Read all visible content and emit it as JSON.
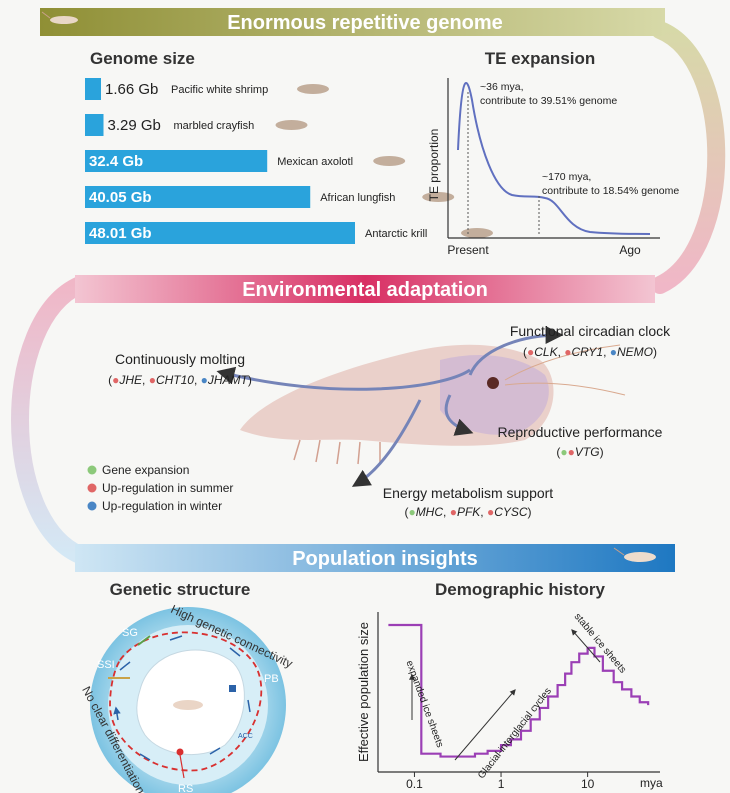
{
  "sections": {
    "genome": "Enormous repetitive genome",
    "adaptation": "Environmental adaptation",
    "population": "Population insights"
  },
  "genome_size": {
    "title": "Genome size",
    "chart_data": {
      "type": "bar",
      "categories": [
        "Pacific white shrimp",
        "marbled crayfish",
        "Mexican axolotl",
        "African lungfish",
        "Antarctic krill"
      ],
      "values": [
        1.66,
        3.29,
        32.4,
        40.05,
        48.01
      ],
      "value_labels": [
        "1.66 Gb",
        "3.29 Gb",
        "32.4 Gb",
        "40.05 Gb",
        "48.01 Gb"
      ],
      "unit": "Gb",
      "bar_color": "#2aa3dc"
    }
  },
  "te_expansion": {
    "title": "TE expansion",
    "ylabel": "TE proportion",
    "x_start": "Present",
    "x_end": "Ago",
    "peak1_line1": "~36 mya,",
    "peak1_line2": "contribute to 39.51% genome",
    "peak2_line1": "~170 mya,",
    "peak2_line2": "contribute to 18.54% genome"
  },
  "adaptation": {
    "molting_title": "Continuously molting",
    "molting_genes": [
      "JHE",
      "CHT10",
      "JHAMT"
    ],
    "clock_title": "Functional circadian clock",
    "clock_genes": [
      "CLK",
      "CRY1",
      "NEMO"
    ],
    "repro_title": "Reproductive performance",
    "repro_genes": [
      "VTG"
    ],
    "energy_title": "Energy metabolism support",
    "energy_genes": [
      "MHC",
      "PFK",
      "CYSC"
    ],
    "legend": [
      "Gene expansion",
      "Up-regulation in summer",
      "Up-regulation in winter"
    ],
    "colors": {
      "green": "#8cc97a",
      "red": "#e06666",
      "blue": "#4a86c5"
    }
  },
  "genetic_structure": {
    "title": "Genetic structure",
    "high": "High genetic connectivity",
    "no_diff": "No clear differentiation",
    "regions": [
      "SG",
      "SSI",
      "PB",
      "RS"
    ],
    "acc": "ACC"
  },
  "demographic": {
    "title": "Demographic history",
    "chart_data": {
      "type": "line",
      "x_scale": "log",
      "x_ticks": [
        "0.1",
        "1",
        "10"
      ],
      "x_unit": "mya",
      "ylabel": "Effective population size",
      "annotations": [
        "expanded ice sheets",
        "Glacial-interglacial cycles",
        "stable ice sheets"
      ],
      "line_color": "#9b3fb5",
      "series": [
        {
          "x": [
            0.05,
            0.12,
            0.12,
            0.2,
            0.3,
            0.5,
            0.7,
            1.0,
            1.3,
            1.7,
            2.2,
            2.8,
            3.5,
            4.5,
            5.5,
            6.5,
            8.0,
            10.0,
            12.0,
            15.0,
            20.0,
            25.0,
            32.0,
            40.0,
            50.0
          ],
          "y": [
            1.0,
            1.0,
            0.1,
            0.08,
            0.08,
            0.1,
            0.12,
            0.16,
            0.2,
            0.26,
            0.34,
            0.42,
            0.5,
            0.58,
            0.66,
            0.74,
            0.8,
            0.84,
            0.78,
            0.68,
            0.6,
            0.55,
            0.5,
            0.46,
            0.44
          ]
        }
      ]
    }
  }
}
